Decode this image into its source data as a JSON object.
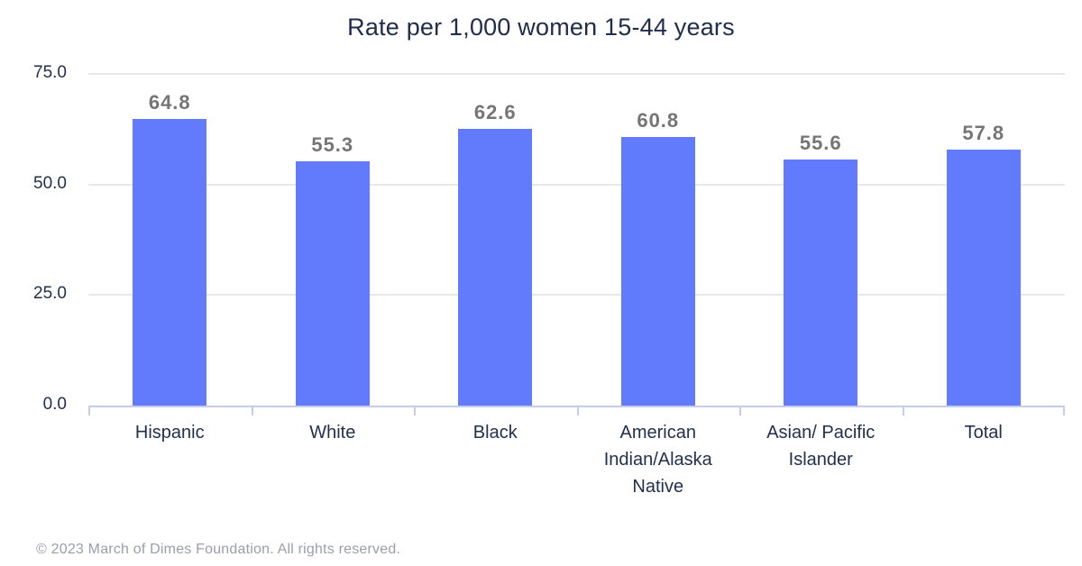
{
  "title": "Rate per 1,000 women 15-44 years",
  "footer": "© 2023 March of Dimes Foundation. All rights reserved.",
  "chart_data": {
    "type": "bar",
    "title": "Rate per 1,000 women 15-44 years",
    "categories": [
      "Hispanic",
      "White",
      "Black",
      "American Indian/Alaska Native",
      "Asian/ Pacific Islander",
      "Total"
    ],
    "values": [
      64.8,
      55.3,
      62.6,
      60.8,
      55.6,
      57.8
    ],
    "value_labels": [
      "64.8",
      "55.3",
      "62.6",
      "60.8",
      "55.6",
      "57.8"
    ],
    "y_tick_values": [
      0,
      25,
      50,
      75
    ],
    "y_tick_labels": [
      "0.0",
      "25.0",
      "50.0",
      "75.0"
    ],
    "ylim": [
      0,
      75
    ],
    "xlabel": "",
    "ylabel": "",
    "grid": true,
    "legend": false,
    "colors": {
      "bar": "#617BFC",
      "value_label": "#757575",
      "axis_text": "#22304F",
      "title_text": "#1F2C4D",
      "gridline": "#E8E8E8",
      "axis_line": "#C5CCE9",
      "footer_text": "#9B9DAA",
      "background": "#FFFFFF"
    }
  }
}
